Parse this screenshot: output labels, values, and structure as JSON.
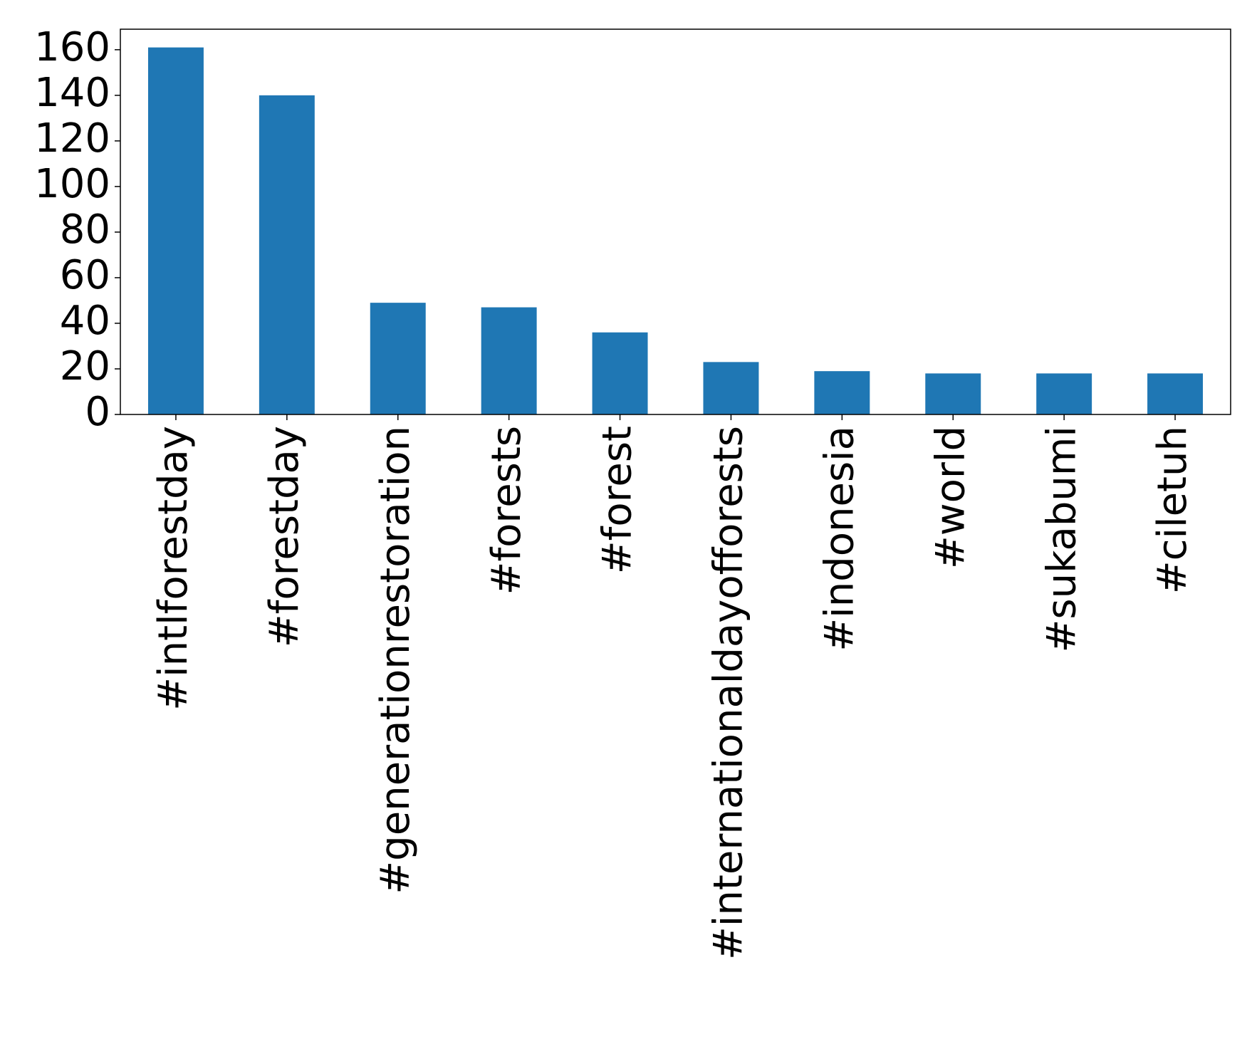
{
  "chart_data": {
    "type": "bar",
    "categories": [
      "#intlforestday",
      "#forestday",
      "#generationrestoration",
      "#forests",
      "#forest",
      "#internationaldayofforests",
      "#indonesia",
      "#world",
      "#sukabumi",
      "#ciletuh"
    ],
    "values": [
      161,
      140,
      49,
      47,
      36,
      23,
      19,
      18,
      18,
      18
    ],
    "color": "#1f77b4",
    "ylim": [
      0,
      169
    ],
    "yticks": [
      0,
      20,
      40,
      60,
      80,
      100,
      120,
      140,
      160
    ],
    "grid": false
  }
}
